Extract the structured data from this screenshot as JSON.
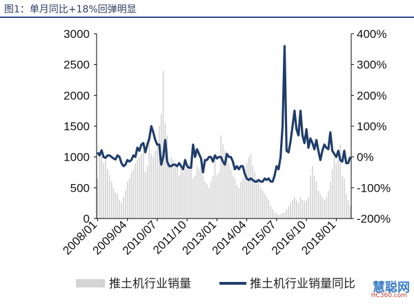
{
  "figure": {
    "caption": "图1：单月同比+18%回弹明显"
  },
  "watermark": {
    "name": "慧聪网",
    "site": "HC360.com"
  },
  "colors": {
    "bars": "#d4d4d4",
    "line": "#1f3d6b",
    "caption": "#2f3e63"
  },
  "chart_data": {
    "type": "bar",
    "title": "",
    "xlabel": "",
    "ylabel": "",
    "y2label": "",
    "ylim": [
      0,
      3000
    ],
    "y2lim": [
      -200,
      400
    ],
    "yticks": [
      "0",
      "500",
      "1000",
      "1500",
      "2000",
      "2500",
      "3000"
    ],
    "y2ticks": [
      "-200%",
      "-100%",
      "0%",
      "100%",
      "200%",
      "300%",
      "400%"
    ],
    "xticks": [
      "2008/01",
      "2009/04",
      "2010/07",
      "2011/10",
      "2013/01",
      "2014/04",
      "2015/07",
      "2016/10",
      "2018/01"
    ],
    "grid": false,
    "legend_position": "bottom",
    "start": "2008/01",
    "series": [
      {
        "name": "推土机行业销量",
        "type": "bar",
        "axis": "left",
        "values": [
          650,
          1050,
          1000,
          900,
          950,
          800,
          700,
          600,
          500,
          420,
          400,
          300,
          250,
          350,
          450,
          600,
          650,
          750,
          800,
          900,
          950,
          1000,
          1050,
          1100,
          750,
          850,
          1300,
          1050,
          1000,
          1100,
          1200,
          1500,
          1700,
          2400,
          1550,
          1350,
          900,
          1000,
          950,
          900,
          850,
          700,
          800,
          750,
          800,
          850,
          900,
          1000,
          650,
          700,
          850,
          800,
          850,
          700,
          600,
          550,
          500,
          600,
          700,
          1050,
          700,
          750,
          1350,
          1200,
          1100,
          1000,
          900,
          800,
          700,
          650,
          550,
          500,
          600,
          650,
          800,
          900,
          1000,
          1050,
          850,
          750,
          650,
          600,
          500,
          450,
          400,
          350,
          300,
          200,
          150,
          100,
          80,
          60,
          70,
          90,
          100,
          150,
          200,
          250,
          300,
          350,
          300,
          250,
          350,
          300,
          280,
          300,
          350,
          700,
          850,
          700,
          600,
          450,
          400,
          350,
          300,
          350,
          450,
          600,
          800,
          1000,
          900,
          950,
          1200,
          700,
          650,
          400,
          300,
          200
        ]
      },
      {
        "name": "推土机行业销量同比",
        "type": "line",
        "axis": "right",
        "values": [
          15,
          5,
          22,
          0,
          -3,
          5,
          5,
          0,
          -5,
          -8,
          5,
          0,
          -20,
          -30,
          -25,
          -10,
          -15,
          -10,
          5,
          0,
          30,
          20,
          40,
          45,
          15,
          40,
          60,
          100,
          80,
          55,
          40,
          40,
          -25,
          0,
          55,
          -15,
          -30,
          -30,
          -25,
          -25,
          -30,
          -20,
          -30,
          -40,
          -10,
          -30,
          -35,
          -35,
          40,
          0,
          25,
          10,
          -5,
          -50,
          -10,
          -10,
          0,
          0,
          -15,
          5,
          -5,
          0,
          0,
          -15,
          -25,
          10,
          0,
          0,
          -15,
          -40,
          -30,
          -40,
          -30,
          -30,
          -55,
          -70,
          -75,
          -70,
          -75,
          -80,
          -80,
          -75,
          -80,
          -80,
          -70,
          -75,
          -70,
          -80,
          -80,
          -60,
          -30,
          -40,
          0,
          100,
          360,
          20,
          15,
          50,
          100,
          150,
          90,
          70,
          150,
          70,
          45,
          90,
          30,
          60,
          45,
          25,
          55,
          20,
          -10,
          20,
          40,
          30,
          25,
          80,
          20,
          10,
          0,
          20,
          -10,
          -15,
          20,
          -20,
          -20,
          0
        ]
      }
    ]
  }
}
